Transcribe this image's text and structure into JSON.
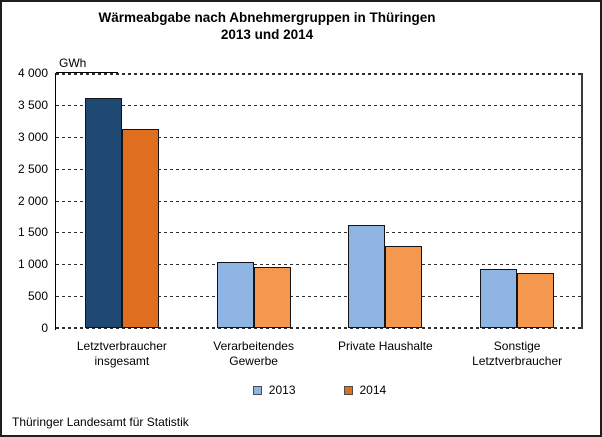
{
  "title": {
    "line1": "Wärmeabgabe nach Abnehmergruppen in Thüringen",
    "line2": "2013 und 2014"
  },
  "footer": "Thüringer Landesamt für Statistik",
  "colors": {
    "bar_border": "#141414",
    "grid": "#2e2e2e",
    "axis": "#000000",
    "series_2013_light": "#8EB4E3",
    "series_2013_dark": "#1F4872",
    "series_2014_light": "#F4984F",
    "series_2014_dark": "#E06E1F"
  },
  "chart_data": {
    "type": "bar",
    "title": "Wärmeabgabe nach Abnehmergruppen in Thüringen 2013 und 2014",
    "unit_label": "GWh",
    "ylabel": "GWh",
    "xlabel": "",
    "ylim": [
      0,
      4000
    ],
    "ytick_step": 500,
    "ytick_labels": [
      "0",
      "500",
      "1 000",
      "1 500",
      "2 000",
      "2 500",
      "3 000",
      "3 500",
      "4 000"
    ],
    "grid": "dashed horizontal",
    "legend_position": "bottom",
    "highlight_category_index": 0,
    "categories": [
      {
        "label_lines": [
          "Letztverbraucher",
          "insgesamt"
        ]
      },
      {
        "label_lines": [
          "Verarbeitendes",
          "Gewerbe"
        ]
      },
      {
        "label_lines": [
          "Private Haushalte"
        ]
      },
      {
        "label_lines": [
          "Sonstige",
          "Letztverbraucher"
        ]
      }
    ],
    "series": [
      {
        "name": "2013",
        "values": [
          3600,
          1040,
          1620,
          920
        ],
        "color": "#8EB4E3",
        "highlight_color": "#1F4872",
        "legend_color": "#8EB4E3"
      },
      {
        "name": "2014",
        "values": [
          3125,
          960,
          1280,
          870
        ],
        "color": "#F4984F",
        "highlight_color": "#E06E1F",
        "legend_color": "#E06E1F"
      }
    ]
  }
}
